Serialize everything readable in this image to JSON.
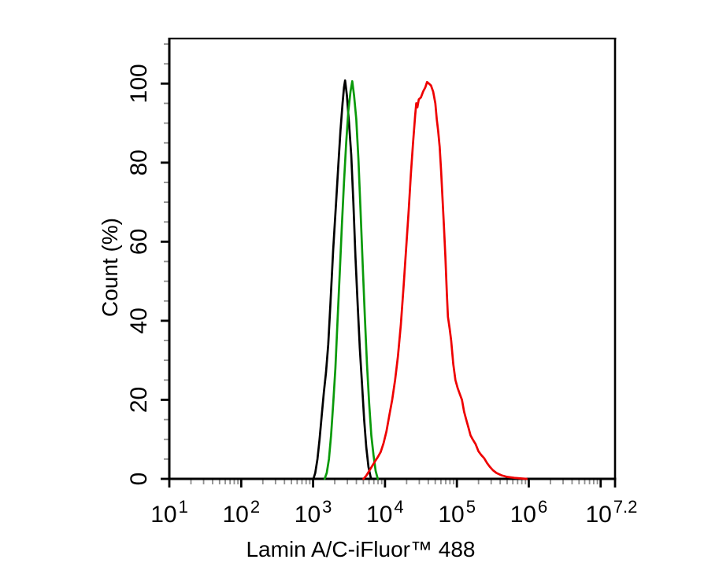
{
  "figure": {
    "background": "#ffffff",
    "frame_color": "#000000"
  },
  "chart_data": {
    "type": "line",
    "subtype": "flow-cytometry-histogram-overlay",
    "title": "",
    "xlabel": "Lamin A/C-iFluor™ 488",
    "ylabel": "Count (%)",
    "x_scale": "log10",
    "x_decade_range": [
      1,
      7.2
    ],
    "ylim": [
      0,
      111.4
    ],
    "grid": false,
    "legend": "none",
    "axis_color": "#000000",
    "minor_tick_color": "#8f8f8f",
    "y_major_ticks": [
      0,
      20,
      40,
      60,
      80,
      100
    ],
    "y_minor_tick_step": 5,
    "x_major_ticks": [
      {
        "decade": 1,
        "base": "10",
        "exp": "1",
        "label_decade": 1
      },
      {
        "decade": 2,
        "base": "10",
        "exp": "2",
        "label_decade": 2
      },
      {
        "decade": 3,
        "base": "10",
        "exp": "3",
        "label_decade": 3
      },
      {
        "decade": 4,
        "base": "10",
        "exp": "4",
        "label_decade": 4
      },
      {
        "decade": 5,
        "base": "10",
        "exp": "5",
        "label_decade": 5
      },
      {
        "decade": 6,
        "base": "10",
        "exp": "6",
        "label_decade": 6
      },
      {
        "decade": 7,
        "base": "",
        "exp": "",
        "label_decade": 7
      },
      {
        "decade": 7.2,
        "base": "10",
        "exp": "7.2",
        "label_decade": 7.15
      }
    ],
    "x_minor_ticks": "log-subdecades 2-9 between each labeled decade",
    "series": [
      {
        "name": "black-curve",
        "color": "#000000",
        "peak_percent": 100.8,
        "peak_decade": 3.445,
        "points": [
          [
            3.005,
            0
          ],
          [
            3.03,
            1.5
          ],
          [
            3.06,
            5
          ],
          [
            3.09,
            10
          ],
          [
            3.12,
            16
          ],
          [
            3.15,
            22
          ],
          [
            3.18,
            27
          ],
          [
            3.21,
            34
          ],
          [
            3.24,
            44
          ],
          [
            3.28,
            58
          ],
          [
            3.32,
            70
          ],
          [
            3.35,
            79
          ],
          [
            3.38,
            88
          ],
          [
            3.41,
            95
          ],
          [
            3.43,
            99
          ],
          [
            3.445,
            100.8
          ],
          [
            3.47,
            97
          ],
          [
            3.5,
            90
          ],
          [
            3.53,
            82
          ],
          [
            3.56,
            70
          ],
          [
            3.59,
            56
          ],
          [
            3.62,
            44
          ],
          [
            3.65,
            33
          ],
          [
            3.68,
            24
          ],
          [
            3.71,
            15
          ],
          [
            3.74,
            8
          ],
          [
            3.77,
            3
          ],
          [
            3.8,
            0.5
          ],
          [
            3.81,
            0
          ]
        ]
      },
      {
        "name": "green-curve",
        "color": "#0a9a0a",
        "peak_percent": 100.6,
        "peak_decade": 3.545,
        "points": [
          [
            3.16,
            0
          ],
          [
            3.19,
            1.5
          ],
          [
            3.22,
            5
          ],
          [
            3.25,
            11
          ],
          [
            3.28,
            19
          ],
          [
            3.31,
            28
          ],
          [
            3.34,
            40
          ],
          [
            3.37,
            52
          ],
          [
            3.4,
            64
          ],
          [
            3.43,
            75
          ],
          [
            3.46,
            85
          ],
          [
            3.49,
            93
          ],
          [
            3.52,
            98
          ],
          [
            3.545,
            100.6
          ],
          [
            3.57,
            97
          ],
          [
            3.6,
            91
          ],
          [
            3.63,
            81
          ],
          [
            3.66,
            68
          ],
          [
            3.69,
            54
          ],
          [
            3.72,
            41
          ],
          [
            3.75,
            29
          ],
          [
            3.78,
            19
          ],
          [
            3.81,
            11
          ],
          [
            3.84,
            6
          ],
          [
            3.87,
            2
          ],
          [
            3.9,
            0
          ]
        ]
      },
      {
        "name": "red-curve",
        "color": "#ee0000",
        "peak_percent": 100.4,
        "peak_decade": 4.585,
        "points": [
          [
            3.7,
            0
          ],
          [
            3.74,
            0.8
          ],
          [
            3.78,
            2
          ],
          [
            3.82,
            3.2
          ],
          [
            3.86,
            4.4
          ],
          [
            3.9,
            5.5
          ],
          [
            3.94,
            6.8
          ],
          [
            3.98,
            9
          ],
          [
            4.02,
            12
          ],
          [
            4.06,
            16
          ],
          [
            4.1,
            20
          ],
          [
            4.14,
            25
          ],
          [
            4.18,
            31
          ],
          [
            4.22,
            39
          ],
          [
            4.26,
            49
          ],
          [
            4.3,
            60
          ],
          [
            4.33,
            68
          ],
          [
            4.36,
            77
          ],
          [
            4.39,
            85
          ],
          [
            4.42,
            92
          ],
          [
            4.435,
            95
          ],
          [
            4.45,
            94
          ],
          [
            4.47,
            96
          ],
          [
            4.5,
            96.5
          ],
          [
            4.53,
            98
          ],
          [
            4.56,
            99
          ],
          [
            4.585,
            100.4
          ],
          [
            4.61,
            100
          ],
          [
            4.64,
            99.5
          ],
          [
            4.67,
            98
          ],
          [
            4.7,
            95
          ],
          [
            4.72,
            91
          ],
          [
            4.74,
            88
          ],
          [
            4.76,
            84
          ],
          [
            4.78,
            78
          ],
          [
            4.8,
            71
          ],
          [
            4.82,
            64
          ],
          [
            4.84,
            56
          ],
          [
            4.86,
            47
          ],
          [
            4.875,
            41
          ],
          [
            4.9,
            38
          ],
          [
            4.92,
            35
          ],
          [
            4.95,
            29
          ],
          [
            4.98,
            25
          ],
          [
            5.01,
            23
          ],
          [
            5.04,
            21.5
          ],
          [
            5.07,
            20
          ],
          [
            5.1,
            17
          ],
          [
            5.13,
            15
          ],
          [
            5.16,
            13
          ],
          [
            5.19,
            11
          ],
          [
            5.22,
            10
          ],
          [
            5.26,
            8.8
          ],
          [
            5.3,
            7
          ],
          [
            5.34,
            6
          ],
          [
            5.38,
            5.2
          ],
          [
            5.42,
            4
          ],
          [
            5.46,
            3
          ],
          [
            5.5,
            2.2
          ],
          [
            5.55,
            1.5
          ],
          [
            5.62,
            0.9
          ],
          [
            5.7,
            0.5
          ],
          [
            5.8,
            0.25
          ],
          [
            5.9,
            0.1
          ],
          [
            5.97,
            0
          ]
        ]
      }
    ]
  }
}
